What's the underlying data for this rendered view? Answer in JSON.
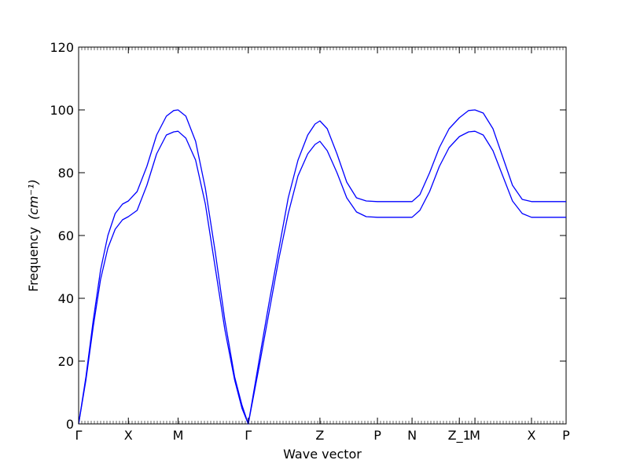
{
  "chart_data": {
    "type": "line",
    "title": "",
    "xlabel": "Wave vector",
    "ylabel": "Frequency",
    "ylabel_unit": "(cm⁻¹)",
    "xlim": [
      0,
      10
    ],
    "ylim": [
      0,
      120
    ],
    "y_ticks": [
      0,
      20,
      40,
      60,
      80,
      100,
      120
    ],
    "x_ticks": [
      {
        "label": "Γ",
        "x": 0
      },
      {
        "label": "X",
        "x": 1.02
      },
      {
        "label": "M",
        "x": 2.04
      },
      {
        "label": "Γ",
        "x": 3.48
      },
      {
        "label": "Z",
        "x": 4.95
      },
      {
        "label": "P",
        "x": 6.13
      },
      {
        "label": "N",
        "x": 6.84
      },
      {
        "label": "Z_1",
        "x": 7.81
      },
      {
        "label": "M",
        "x": 8.13
      },
      {
        "label": "X",
        "x": 9.29
      },
      {
        "label": "P",
        "x": 10
      }
    ],
    "grid": false,
    "line_color": "#0000ff",
    "series": [
      {
        "x": [
          0,
          0.15,
          0.3,
          0.45,
          0.6,
          0.75,
          0.9,
          1.02,
          1.2,
          1.4,
          1.6,
          1.8,
          1.95,
          2.04,
          2.2,
          2.4,
          2.6,
          2.8,
          3.0,
          3.2,
          3.35,
          3.48,
          3.7,
          3.9,
          4.1,
          4.3,
          4.5,
          4.7,
          4.85,
          4.95,
          5.1,
          5.3,
          5.5,
          5.7,
          5.9,
          6.13,
          6.4,
          6.65,
          6.84,
          7.0,
          7.2,
          7.4,
          7.6,
          7.81,
          8.0,
          8.13,
          8.3,
          8.5,
          8.7,
          8.9,
          9.1,
          9.29,
          9.6,
          10
        ],
        "y": [
          0,
          15,
          33,
          49,
          60,
          67,
          70,
          71,
          74,
          82,
          92,
          98,
          99.8,
          100,
          98,
          90,
          75,
          55,
          33,
          15,
          6,
          0,
          20,
          38,
          55,
          72,
          84,
          92,
          95.5,
          96.5,
          94,
          86,
          77,
          72,
          71,
          70.8,
          70.8,
          70.8,
          70.8,
          73,
          80,
          88,
          94,
          97.5,
          99.8,
          100,
          99,
          94,
          85,
          76,
          71.5,
          70.8,
          70.8,
          70.8
        ]
      },
      {
        "x": [
          0,
          0.15,
          0.3,
          0.45,
          0.6,
          0.75,
          0.9,
          1.02,
          1.2,
          1.4,
          1.6,
          1.8,
          1.95,
          2.04,
          2.2,
          2.4,
          2.6,
          2.8,
          3.0,
          3.2,
          3.35,
          3.48,
          3.7,
          3.9,
          4.1,
          4.3,
          4.5,
          4.7,
          4.85,
          4.95,
          5.1,
          5.3,
          5.5,
          5.7,
          5.9,
          6.13,
          6.4,
          6.65,
          6.84,
          7.0,
          7.2,
          7.4,
          7.6,
          7.81,
          8.0,
          8.13,
          8.3,
          8.5,
          8.7,
          8.9,
          9.1,
          9.29,
          9.6,
          10
        ],
        "y": [
          0,
          14,
          31,
          46,
          56,
          62,
          65,
          66,
          68,
          76,
          86,
          92,
          93,
          93.2,
          91,
          84,
          70,
          50,
          30,
          14,
          5,
          0,
          18,
          35,
          52,
          67,
          79,
          86,
          89,
          90,
          87,
          80,
          72,
          67.5,
          66,
          65.8,
          65.8,
          65.8,
          65.8,
          68,
          74,
          82,
          88,
          91.5,
          93,
          93.2,
          92,
          87,
          79,
          71,
          67,
          65.8,
          65.8,
          65.8
        ]
      }
    ]
  }
}
